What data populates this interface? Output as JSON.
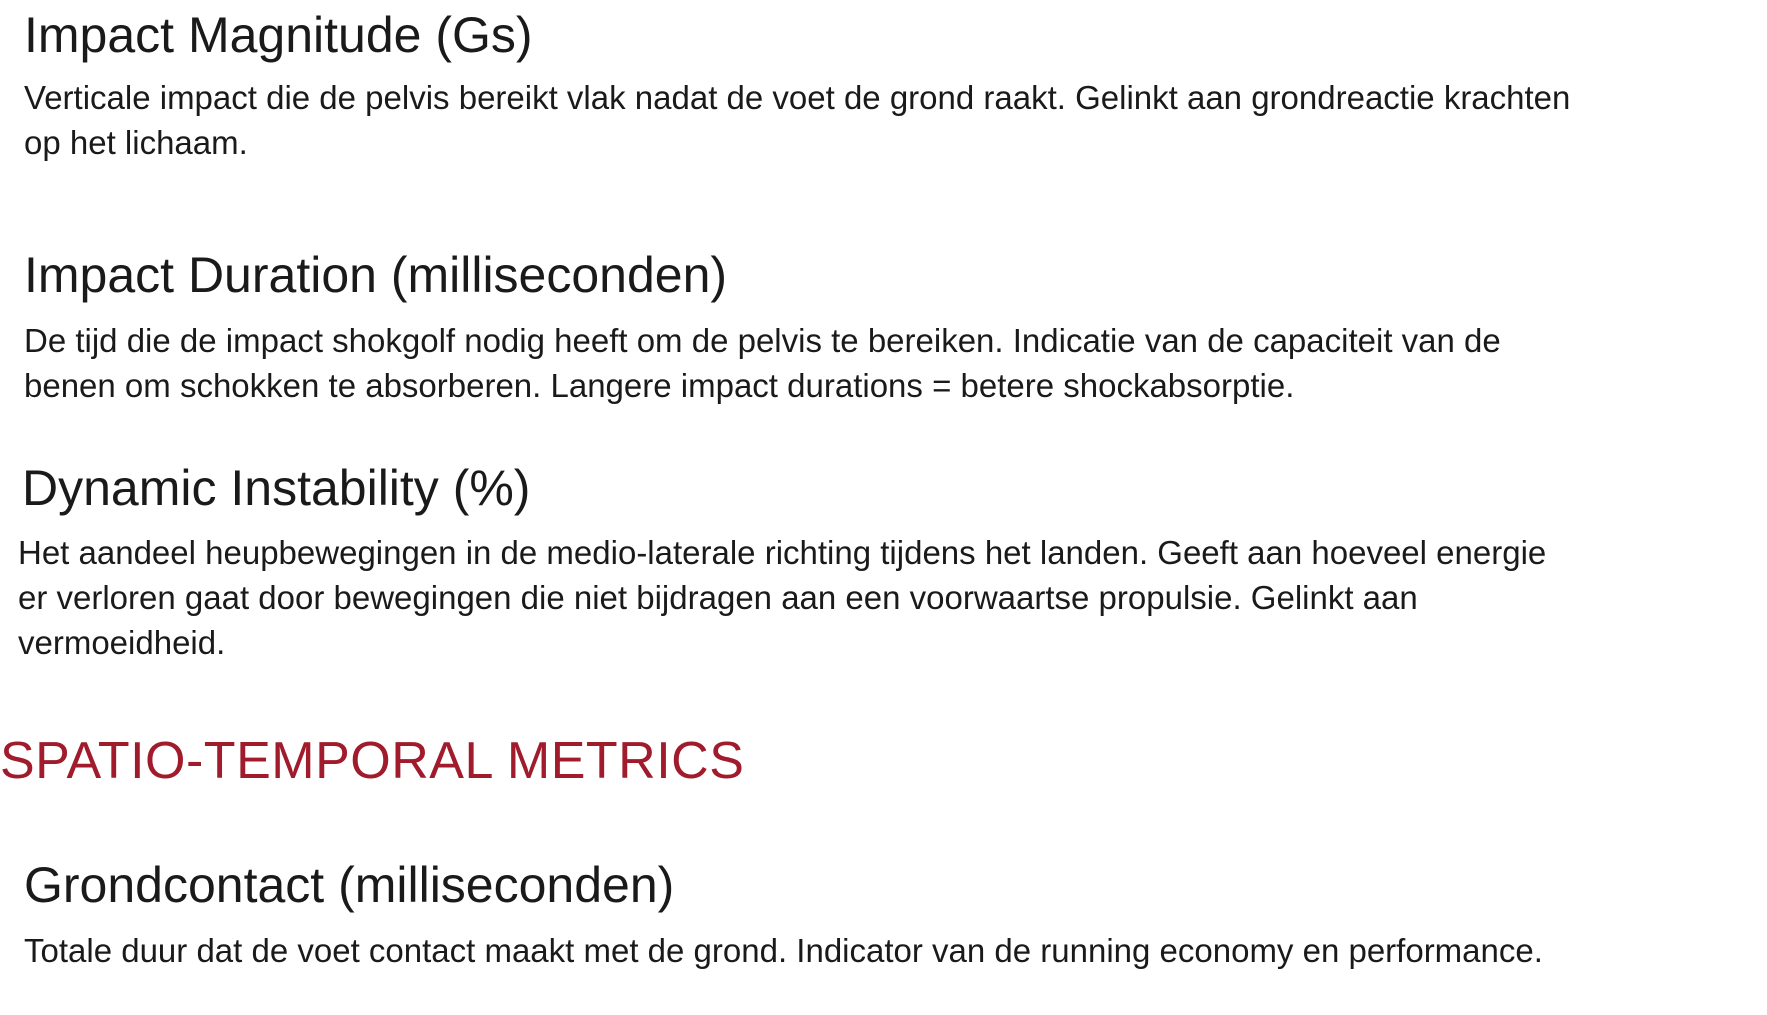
{
  "colors": {
    "text": "#1a1a1a",
    "section_accent": "#a01c2c"
  },
  "metrics": [
    {
      "title": "Impact Magnitude (Gs)",
      "description": "Verticale impact die de pelvis bereikt vlak nadat de voet de grond raakt. Gelinkt aan grondreactie krachten op het lichaam."
    },
    {
      "title": "Impact Duration (milliseconden)",
      "description": "De tijd die de impact shokgolf nodig heeft om de pelvis te bereiken. Indicatie van de capaciteit van de benen om schokken te absorberen. Langere impact durations = betere shockabsorptie."
    },
    {
      "title": "Dynamic Instability (%)",
      "description": "Het aandeel heupbewegingen in de medio-laterale richting tijdens het landen. Geeft aan hoeveel energie er verloren gaat door bewegingen die niet bijdragen aan een voorwaartse propulsie. Gelinkt aan vermoeidheid."
    }
  ],
  "section": {
    "heading": "SPATIO-TEMPORAL METRICS"
  },
  "spatio_temporal_metrics": [
    {
      "title": "Grondcontact (milliseconden)",
      "description": "Totale duur dat de voet contact maakt met de grond. Indicator van de running economy en performance."
    }
  ]
}
